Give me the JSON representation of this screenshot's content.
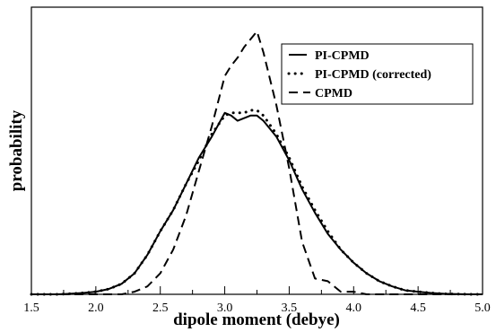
{
  "chart_data": {
    "type": "line",
    "title": "",
    "xlabel": "dipole moment (debye)",
    "ylabel": "probability",
    "xlim": [
      1.5,
      5.0
    ],
    "ylim": [
      0,
      1.0
    ],
    "xticks": [
      "1.5",
      "2.0",
      "2.5",
      "3.0",
      "3.5",
      "4.0",
      "4.5",
      "5.0"
    ],
    "legend_position": "top-right",
    "grid": false,
    "x": [
      1.5,
      1.6,
      1.7,
      1.8,
      1.9,
      2.0,
      2.1,
      2.2,
      2.3,
      2.4,
      2.5,
      2.6,
      2.7,
      2.8,
      2.9,
      3.0,
      3.05,
      3.1,
      3.15,
      3.2,
      3.25,
      3.3,
      3.4,
      3.5,
      3.6,
      3.7,
      3.8,
      3.9,
      4.0,
      4.1,
      4.2,
      4.3,
      4.4,
      4.5,
      4.6,
      4.7,
      4.8,
      4.9,
      5.0
    ],
    "series": [
      {
        "name": "PI-CPMD",
        "style": "solid",
        "values": [
          0.0,
          0.0,
          0.0,
          0.002,
          0.005,
          0.01,
          0.02,
          0.04,
          0.08,
          0.15,
          0.24,
          0.32,
          0.42,
          0.52,
          0.6,
          0.69,
          0.68,
          0.66,
          0.67,
          0.68,
          0.68,
          0.66,
          0.6,
          0.51,
          0.4,
          0.31,
          0.23,
          0.17,
          0.12,
          0.08,
          0.05,
          0.03,
          0.015,
          0.01,
          0.005,
          0.002,
          0.001,
          0.0,
          0.0
        ]
      },
      {
        "name": "PI-CPMD (corrected)",
        "style": "dotted",
        "values": [
          0.0,
          0.0,
          0.0,
          0.002,
          0.005,
          0.01,
          0.02,
          0.04,
          0.08,
          0.15,
          0.24,
          0.32,
          0.42,
          0.51,
          0.61,
          0.68,
          0.69,
          0.69,
          0.69,
          0.7,
          0.7,
          0.68,
          0.61,
          0.52,
          0.41,
          0.32,
          0.24,
          0.17,
          0.12,
          0.08,
          0.05,
          0.03,
          0.015,
          0.01,
          0.005,
          0.002,
          0.001,
          0.0,
          0.0
        ]
      },
      {
        "name": "CPMD",
        "style": "dashed",
        "values": [
          0.0,
          0.0,
          0.0,
          0.0,
          0.0,
          0.0,
          0.0,
          0.0,
          0.01,
          0.03,
          0.08,
          0.17,
          0.3,
          0.47,
          0.64,
          0.83,
          0.87,
          0.9,
          0.94,
          0.97,
          1.0,
          0.92,
          0.72,
          0.48,
          0.2,
          0.06,
          0.05,
          0.01,
          0.01,
          0.0,
          0.0,
          0.0,
          0.0,
          0.0,
          0.0,
          0.0,
          0.0,
          0.0,
          0.0
        ]
      }
    ]
  }
}
